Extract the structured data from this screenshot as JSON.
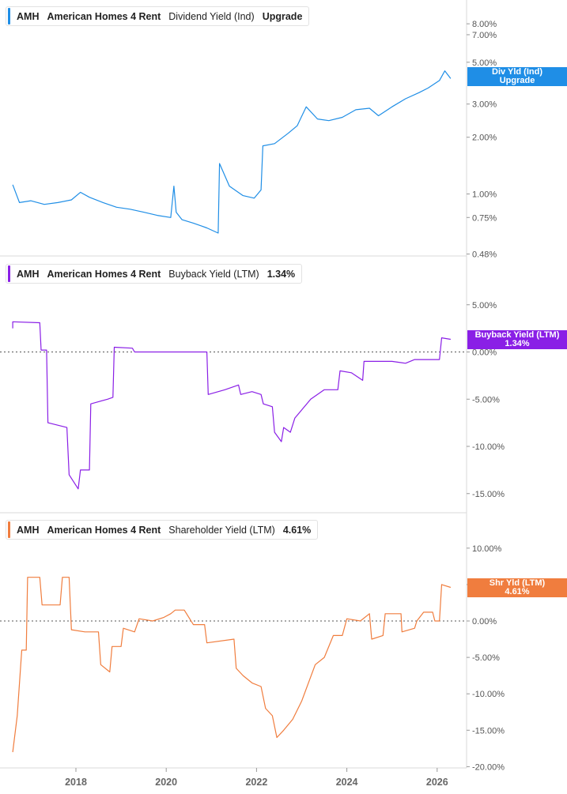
{
  "colors": {
    "dividend": "#1f8ee6",
    "buyback": "#8a1fe6",
    "shareholder": "#f07d3e",
    "axis_text": "#555555",
    "divider": "#d9d9d9"
  },
  "panels": [
    {
      "ticker": "AMH",
      "company": "American Homes 4 Rent",
      "metric": "Dividend Yield (Ind)",
      "value": "Upgrade",
      "tag_line1": "Div Yld (Ind)",
      "tag_line2": "Upgrade"
    },
    {
      "ticker": "AMH",
      "company": "American Homes 4 Rent",
      "metric": "Buyback Yield (LTM)",
      "value": "1.34%",
      "tag_line1": "Buyback Yield (LTM)",
      "tag_line2": "1.34%"
    },
    {
      "ticker": "AMH",
      "company": "American Homes 4 Rent",
      "metric": "Shareholder Yield (LTM)",
      "value": "4.61%",
      "tag_line1": "Shr Yld (LTM)",
      "tag_line2": "4.61%"
    }
  ],
  "chart_data": [
    {
      "type": "line",
      "title": "Dividend Yield (Ind)",
      "yscale": "log",
      "yticks": [
        {
          "v": 8.0,
          "label": "8.00%"
        },
        {
          "v": 7.0,
          "label": "7.00%"
        },
        {
          "v": 5.0,
          "label": "5.00%"
        },
        {
          "v": 3.0,
          "label": "3.00%"
        },
        {
          "v": 2.0,
          "label": "2.00%"
        },
        {
          "v": 1.0,
          "label": "1.00%"
        },
        {
          "v": 0.75,
          "label": "0.75%"
        },
        {
          "v": 0.48,
          "label": "0.48%"
        }
      ],
      "series": [
        {
          "name": "Dividend Yield (Ind)",
          "points": [
            [
              2016.6,
              1.12
            ],
            [
              2016.75,
              0.9
            ],
            [
              2017.0,
              0.92
            ],
            [
              2017.3,
              0.88
            ],
            [
              2017.6,
              0.9
            ],
            [
              2017.9,
              0.93
            ],
            [
              2018.1,
              1.02
            ],
            [
              2018.3,
              0.96
            ],
            [
              2018.6,
              0.9
            ],
            [
              2018.9,
              0.85
            ],
            [
              2019.2,
              0.83
            ],
            [
              2019.5,
              0.8
            ],
            [
              2019.8,
              0.77
            ],
            [
              2020.1,
              0.75
            ],
            [
              2020.17,
              1.1
            ],
            [
              2020.22,
              0.8
            ],
            [
              2020.35,
              0.73
            ],
            [
              2020.6,
              0.7
            ],
            [
              2020.9,
              0.66
            ],
            [
              2021.15,
              0.62
            ],
            [
              2021.18,
              1.45
            ],
            [
              2021.4,
              1.1
            ],
            [
              2021.7,
              0.98
            ],
            [
              2021.95,
              0.95
            ],
            [
              2022.1,
              1.05
            ],
            [
              2022.14,
              1.8
            ],
            [
              2022.4,
              1.85
            ],
            [
              2022.7,
              2.1
            ],
            [
              2022.9,
              2.3
            ],
            [
              2023.1,
              2.9
            ],
            [
              2023.35,
              2.5
            ],
            [
              2023.6,
              2.45
            ],
            [
              2023.9,
              2.55
            ],
            [
              2024.2,
              2.8
            ],
            [
              2024.5,
              2.85
            ],
            [
              2024.7,
              2.6
            ],
            [
              2025.0,
              2.9
            ],
            [
              2025.3,
              3.2
            ],
            [
              2025.6,
              3.45
            ],
            [
              2025.8,
              3.65
            ],
            [
              2026.05,
              4.0
            ],
            [
              2026.17,
              4.5
            ],
            [
              2026.3,
              4.1
            ]
          ]
        }
      ],
      "last_value": "Upgrade"
    },
    {
      "type": "line",
      "title": "Buyback Yield (LTM)",
      "yticks": [
        {
          "v": 5,
          "label": "5.00%"
        },
        {
          "v": 0,
          "label": "0.00%"
        },
        {
          "v": -5,
          "label": "-5.00%"
        },
        {
          "v": -10,
          "label": "-10.00%"
        },
        {
          "v": -15,
          "label": "-15.00%"
        }
      ],
      "zero_line": true,
      "series": [
        {
          "name": "Buyback Yield (LTM)",
          "points": [
            [
              2016.6,
              2.5
            ],
            [
              2016.6,
              3.2
            ],
            [
              2017.2,
              3.1
            ],
            [
              2017.23,
              0.2
            ],
            [
              2017.35,
              0.2
            ],
            [
              2017.38,
              -7.5
            ],
            [
              2017.8,
              -8.0
            ],
            [
              2017.85,
              -13.0
            ],
            [
              2018.05,
              -14.5
            ],
            [
              2018.1,
              -12.5
            ],
            [
              2018.3,
              -12.5
            ],
            [
              2018.33,
              -5.5
            ],
            [
              2018.7,
              -5.0
            ],
            [
              2018.82,
              -4.8
            ],
            [
              2018.85,
              0.5
            ],
            [
              2019.25,
              0.4
            ],
            [
              2019.3,
              0.0
            ],
            [
              2020.9,
              0.0
            ],
            [
              2020.93,
              -4.5
            ],
            [
              2021.3,
              -4.0
            ],
            [
              2021.6,
              -3.5
            ],
            [
              2021.65,
              -4.5
            ],
            [
              2021.9,
              -4.2
            ],
            [
              2022.1,
              -4.5
            ],
            [
              2022.15,
              -5.5
            ],
            [
              2022.35,
              -5.8
            ],
            [
              2022.4,
              -8.5
            ],
            [
              2022.55,
              -9.5
            ],
            [
              2022.6,
              -8.0
            ],
            [
              2022.75,
              -8.5
            ],
            [
              2022.85,
              -7.0
            ],
            [
              2023.2,
              -5.0
            ],
            [
              2023.5,
              -4.0
            ],
            [
              2023.8,
              -4.0
            ],
            [
              2023.85,
              -2.0
            ],
            [
              2024.1,
              -2.2
            ],
            [
              2024.35,
              -3.0
            ],
            [
              2024.38,
              -1.0
            ],
            [
              2025.0,
              -1.0
            ],
            [
              2025.3,
              -1.2
            ],
            [
              2025.5,
              -0.8
            ],
            [
              2026.05,
              -0.8
            ],
            [
              2026.1,
              1.5
            ],
            [
              2026.3,
              1.34
            ]
          ]
        }
      ],
      "last_value": "1.34%"
    },
    {
      "type": "line",
      "title": "Shareholder Yield (LTM)",
      "yticks": [
        {
          "v": 10,
          "label": "10.00%"
        },
        {
          "v": 5,
          "label": "5.00%"
        },
        {
          "v": 0,
          "label": "0.00%"
        },
        {
          "v": -5,
          "label": "-5.00%"
        },
        {
          "v": -10,
          "label": "-10.00%"
        },
        {
          "v": -15,
          "label": "-15.00%"
        },
        {
          "v": -20,
          "label": "-20.00%"
        }
      ],
      "zero_line": true,
      "series": [
        {
          "name": "Shareholder Yield (LTM)",
          "points": [
            [
              2016.6,
              -18
            ],
            [
              2016.7,
              -13
            ],
            [
              2016.8,
              -4
            ],
            [
              2016.9,
              -4
            ],
            [
              2016.93,
              6
            ],
            [
              2017.2,
              6
            ],
            [
              2017.25,
              2.2
            ],
            [
              2017.65,
              2.2
            ],
            [
              2017.7,
              6
            ],
            [
              2017.85,
              6
            ],
            [
              2017.9,
              -1.2
            ],
            [
              2018.2,
              -1.5
            ],
            [
              2018.5,
              -1.5
            ],
            [
              2018.55,
              -6
            ],
            [
              2018.75,
              -7
            ],
            [
              2018.8,
              -3.5
            ],
            [
              2019.0,
              -3.5
            ],
            [
              2019.05,
              -1
            ],
            [
              2019.3,
              -1.5
            ],
            [
              2019.4,
              0.3
            ],
            [
              2019.7,
              0
            ],
            [
              2019.95,
              0.5
            ],
            [
              2020.1,
              1
            ],
            [
              2020.2,
              1.5
            ],
            [
              2020.4,
              1.5
            ],
            [
              2020.6,
              -0.5
            ],
            [
              2020.85,
              -0.5
            ],
            [
              2020.9,
              -3
            ],
            [
              2021.5,
              -2.5
            ],
            [
              2021.55,
              -6.5
            ],
            [
              2021.7,
              -7.5
            ],
            [
              2021.9,
              -8.5
            ],
            [
              2022.1,
              -9
            ],
            [
              2022.2,
              -12
            ],
            [
              2022.35,
              -13
            ],
            [
              2022.45,
              -16
            ],
            [
              2022.6,
              -15
            ],
            [
              2022.8,
              -13.5
            ],
            [
              2023.0,
              -11
            ],
            [
              2023.3,
              -6
            ],
            [
              2023.5,
              -5
            ],
            [
              2023.7,
              -2
            ],
            [
              2023.9,
              -2
            ],
            [
              2024.0,
              0.3
            ],
            [
              2024.3,
              0
            ],
            [
              2024.5,
              1
            ],
            [
              2024.55,
              -2.5
            ],
            [
              2024.8,
              -2
            ],
            [
              2024.85,
              1
            ],
            [
              2025.2,
              1
            ],
            [
              2025.22,
              -1.5
            ],
            [
              2025.5,
              -1
            ],
            [
              2025.55,
              0
            ],
            [
              2025.7,
              1.2
            ],
            [
              2025.9,
              1.2
            ],
            [
              2025.95,
              0
            ],
            [
              2026.05,
              0
            ],
            [
              2026.1,
              5
            ],
            [
              2026.3,
              4.61
            ]
          ]
        }
      ],
      "last_value": "4.61%"
    }
  ],
  "x_axis": {
    "ticks": [
      {
        "v": 2018,
        "label": "2018"
      },
      {
        "v": 2020,
        "label": "2020"
      },
      {
        "v": 2022,
        "label": "2022"
      },
      {
        "v": 2024,
        "label": "2024"
      },
      {
        "v": 2026,
        "label": "2026"
      }
    ]
  }
}
